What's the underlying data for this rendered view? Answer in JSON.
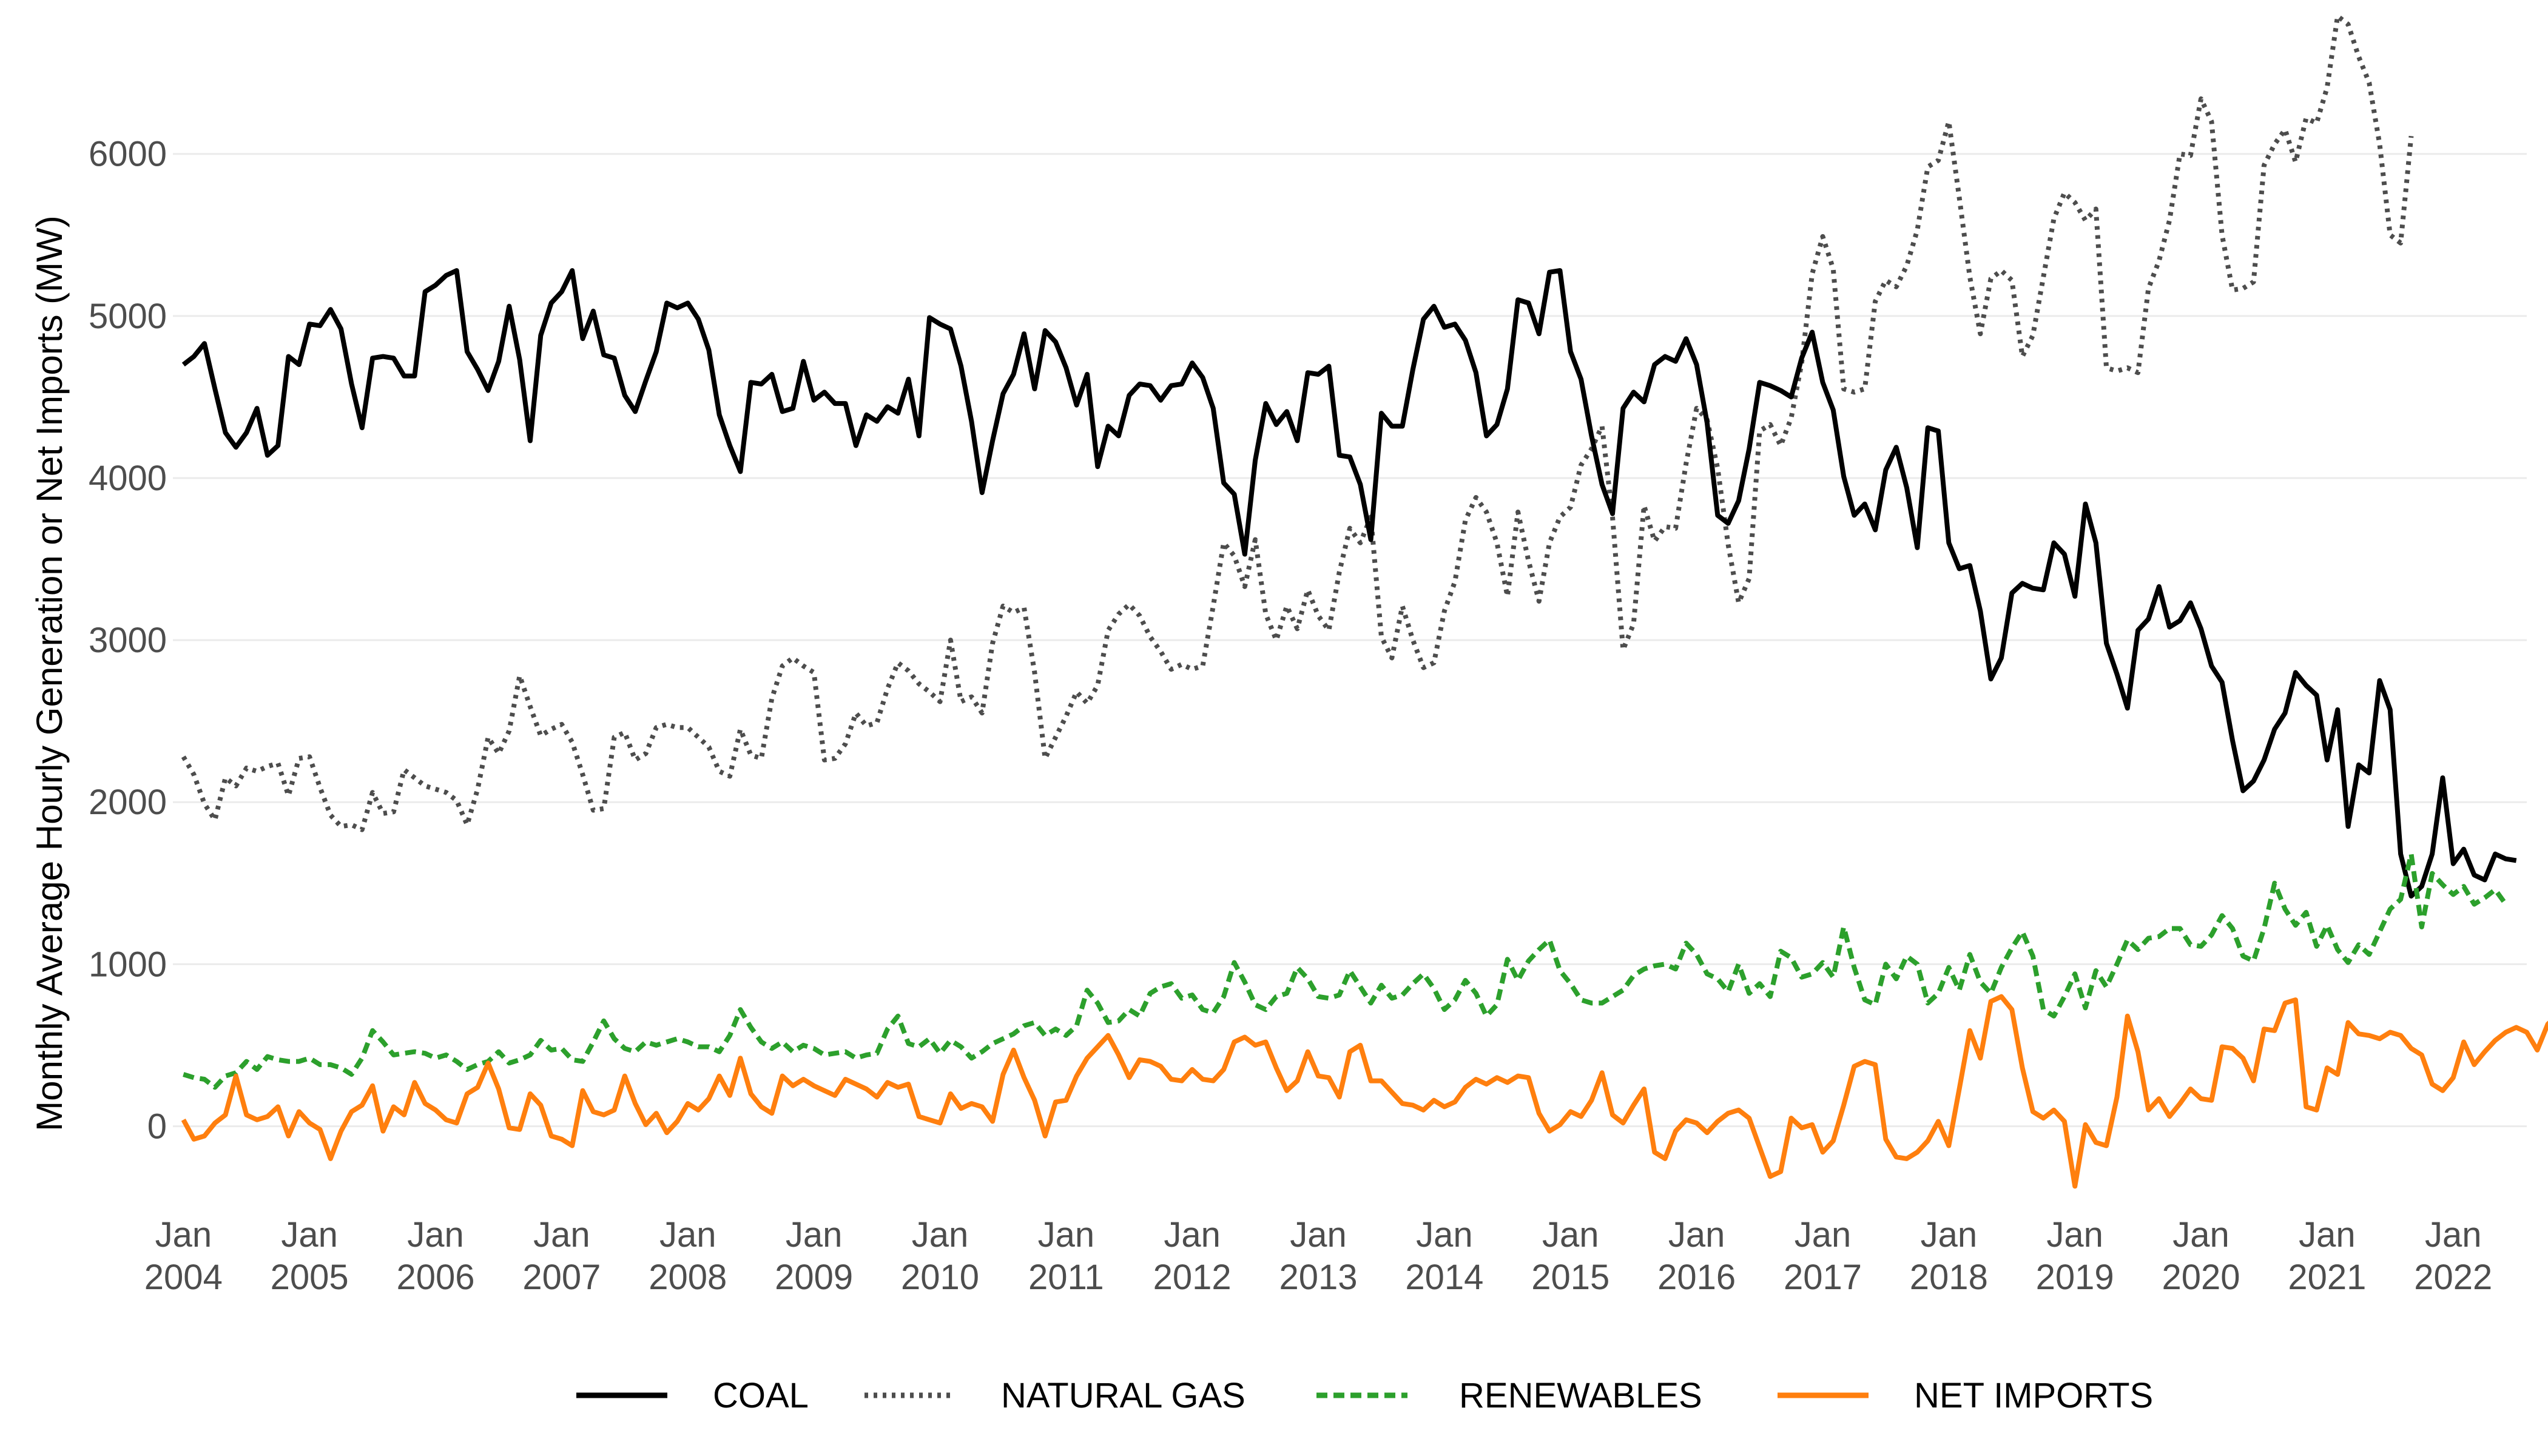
{
  "chart_data": {
    "type": "line",
    "title": "",
    "xlabel": "",
    "ylabel": "Monthly Average Hourly Generation or Net Imports (MW)",
    "x_start": "2004-01",
    "x_end": "2022-07",
    "xlim": [
      "2003-12",
      "2022-08"
    ],
    "ylim": [
      -500,
      6800
    ],
    "y_ticks": [
      0,
      1000,
      2000,
      3000,
      4000,
      5000,
      6000
    ],
    "y_tick_labels": [
      "0",
      "1000",
      "2000",
      "3000",
      "4000",
      "5000",
      "6000"
    ],
    "x_ticks": [
      {
        "date": "2004-01",
        "month": "Jan",
        "year": "2004"
      },
      {
        "date": "2005-01",
        "month": "Jan",
        "year": "2005"
      },
      {
        "date": "2006-01",
        "month": "Jan",
        "year": "2006"
      },
      {
        "date": "2007-01",
        "month": "Jan",
        "year": "2007"
      },
      {
        "date": "2008-01",
        "month": "Jan",
        "year": "2008"
      },
      {
        "date": "2009-01",
        "month": "Jan",
        "year": "2009"
      },
      {
        "date": "2010-01",
        "month": "Jan",
        "year": "2010"
      },
      {
        "date": "2011-01",
        "month": "Jan",
        "year": "2011"
      },
      {
        "date": "2012-01",
        "month": "Jan",
        "year": "2012"
      },
      {
        "date": "2013-01",
        "month": "Jan",
        "year": "2013"
      },
      {
        "date": "2014-01",
        "month": "Jan",
        "year": "2014"
      },
      {
        "date": "2015-01",
        "month": "Jan",
        "year": "2015"
      },
      {
        "date": "2016-01",
        "month": "Jan",
        "year": "2016"
      },
      {
        "date": "2017-01",
        "month": "Jan",
        "year": "2017"
      },
      {
        "date": "2018-01",
        "month": "Jan",
        "year": "2018"
      },
      {
        "date": "2019-01",
        "month": "Jan",
        "year": "2019"
      },
      {
        "date": "2020-01",
        "month": "Jan",
        "year": "2020"
      },
      {
        "date": "2021-01",
        "month": "Jan",
        "year": "2021"
      },
      {
        "date": "2022-01",
        "month": "Jan",
        "year": "2022"
      }
    ],
    "grid": "horizontal-major",
    "legend_position": "bottom",
    "series": [
      {
        "name": "COAL",
        "color": "#000000",
        "dash": "solid",
        "values": [
          4700,
          4750,
          4830,
          4550,
          4280,
          4190,
          4280,
          4430,
          4140,
          4200,
          4750,
          4700,
          4950,
          4940,
          5040,
          4920,
          4580,
          4310,
          4740,
          4750,
          4740,
          4630,
          4630,
          5150,
          5190,
          5250,
          5280,
          4780,
          4670,
          4540,
          4720,
          5060,
          4730,
          4230,
          4880,
          5080,
          5150,
          5280,
          4860,
          5030,
          4760,
          4740,
          4510,
          4410,
          4600,
          4780,
          5080,
          5050,
          5080,
          4980,
          4790,
          4390,
          4200,
          4040,
          4590,
          4580,
          4640,
          4410,
          4430,
          4720,
          4480,
          4530,
          4460,
          4460,
          4200,
          4390,
          4350,
          4440,
          4400,
          4610,
          4260,
          4990,
          4950,
          4920,
          4690,
          4350,
          3910,
          4230,
          4520,
          4640,
          4890,
          4550,
          4910,
          4840,
          4680,
          4450,
          4640,
          4070,
          4320,
          4260,
          4510,
          4580,
          4570,
          4480,
          4570,
          4580,
          4710,
          4620,
          4430,
          3970,
          3900,
          3530,
          4110,
          4460,
          4330,
          4410,
          4230,
          4650,
          4640,
          4690,
          4140,
          4130,
          3960,
          3620,
          4400,
          4320,
          4320,
          4670,
          4980,
          5060,
          4930,
          4950,
          4850,
          4650,
          4260,
          4330,
          4550,
          5100,
          5080,
          4890,
          5270,
          5280,
          4780,
          4610,
          4260,
          3960,
          3780,
          4430,
          4530,
          4470,
          4700,
          4750,
          4720,
          4860,
          4700,
          4340,
          3770,
          3720,
          3860,
          4180,
          4590,
          4570,
          4540,
          4500,
          4740,
          4900,
          4590,
          4420,
          4010,
          3770,
          3840,
          3680,
          4050,
          4190,
          3940,
          3570,
          4310,
          4290,
          3600,
          3440,
          3460,
          3180,
          2760,
          2890,
          3290,
          3350,
          3320,
          3310,
          3600,
          3530,
          3270,
          3840,
          3600,
          2980,
          2790,
          2580,
          3060,
          3130,
          3330,
          3080,
          3120,
          3230,
          3070,
          2840,
          2740,
          2380,
          2070,
          2130,
          2260,
          2450,
          2550,
          2800,
          2720,
          2660,
          2260,
          2570,
          1850,
          2230,
          2180,
          2750,
          2570,
          1680,
          1420,
          1480,
          1680,
          2150,
          1620,
          1710,
          1550,
          1520,
          1680,
          1650,
          1640
        ]
      },
      {
        "name": "NATURAL GAS",
        "color": "#4d4d4d",
        "dash": "dotted",
        "values": [
          2280,
          2170,
          1990,
          1890,
          2150,
          2100,
          2210,
          2190,
          2220,
          2240,
          2040,
          2270,
          2280,
          2090,
          1920,
          1850,
          1860,
          1830,
          2060,
          1930,
          1940,
          2200,
          2150,
          2100,
          2080,
          2060,
          2010,
          1860,
          2080,
          2400,
          2300,
          2440,
          2780,
          2590,
          2410,
          2450,
          2480,
          2370,
          2170,
          1950,
          1960,
          2400,
          2430,
          2260,
          2300,
          2460,
          2480,
          2460,
          2460,
          2400,
          2340,
          2190,
          2160,
          2450,
          2290,
          2270,
          2640,
          2840,
          2890,
          2840,
          2800,
          2260,
          2270,
          2360,
          2550,
          2470,
          2490,
          2700,
          2860,
          2810,
          2730,
          2680,
          2620,
          3000,
          2620,
          2650,
          2550,
          2980,
          3210,
          3170,
          3200,
          2800,
          2270,
          2400,
          2530,
          2680,
          2610,
          2720,
          3060,
          3160,
          3220,
          3150,
          3020,
          2930,
          2820,
          2850,
          2820,
          2840,
          3210,
          3600,
          3520,
          3330,
          3620,
          3160,
          3000,
          3210,
          3070,
          3310,
          3150,
          3060,
          3420,
          3690,
          3600,
          3760,
          3020,
          2890,
          3210,
          3000,
          2830,
          2860,
          3180,
          3360,
          3740,
          3880,
          3790,
          3600,
          3270,
          3790,
          3490,
          3240,
          3600,
          3760,
          3820,
          4080,
          4180,
          4320,
          3760,
          2940,
          3100,
          3830,
          3610,
          3700,
          3690,
          4090,
          4430,
          4360,
          4060,
          3590,
          3230,
          3380,
          4290,
          4330,
          4200,
          4370,
          4710,
          5260,
          5490,
          5290,
          4550,
          4530,
          4550,
          5090,
          5220,
          5180,
          5310,
          5530,
          5920,
          5960,
          6200,
          5730,
          5240,
          4890,
          5230,
          5280,
          5220,
          4750,
          4880,
          5240,
          5600,
          5760,
          5700,
          5590,
          5660,
          4680,
          4660,
          4680,
          4650,
          5170,
          5340,
          5590,
          6000,
          5990,
          6340,
          6200,
          5500,
          5160,
          5170,
          5210,
          5930,
          6060,
          6150,
          5950,
          6220,
          6190,
          6410,
          6850,
          6800,
          6600,
          6440,
          6060,
          5500,
          5450,
          6110
        ]
      },
      {
        "name": "RENEWABLES",
        "color": "#2ca02c",
        "dash": "dashed",
        "values": [
          320,
          300,
          290,
          240,
          310,
          330,
          400,
          350,
          430,
          410,
          400,
          400,
          420,
          380,
          380,
          360,
          320,
          420,
          590,
          520,
          440,
          450,
          460,
          450,
          420,
          440,
          400,
          350,
          380,
          400,
          460,
          390,
          410,
          440,
          530,
          470,
          480,
          410,
          400,
          520,
          650,
          540,
          480,
          460,
          520,
          500,
          520,
          540,
          520,
          490,
          490,
          460,
          560,
          720,
          610,
          520,
          480,
          520,
          460,
          500,
          480,
          440,
          450,
          460,
          420,
          440,
          450,
          600,
          680,
          510,
          490,
          540,
          450,
          530,
          490,
          420,
          460,
          510,
          540,
          570,
          620,
          640,
          560,
          600,
          560,
          620,
          840,
          760,
          640,
          650,
          720,
          680,
          820,
          860,
          880,
          790,
          810,
          720,
          700,
          800,
          1010,
          890,
          750,
          720,
          800,
          820,
          980,
          910,
          800,
          790,
          810,
          960,
          860,
          760,
          870,
          790,
          810,
          880,
          940,
          850,
          720,
          780,
          900,
          820,
          680,
          750,
          1030,
          900,
          1020,
          1090,
          1150,
          960,
          880,
          780,
          760,
          760,
          800,
          840,
          930,
          970,
          990,
          1000,
          970,
          1130,
          1060,
          940,
          910,
          830,
          1000,
          820,
          880,
          800,
          1080,
          1040,
          920,
          940,
          1010,
          920,
          1230,
          980,
          780,
          750,
          1000,
          910,
          1050,
          1000,
          760,
          820,
          980,
          840,
          1060,
          890,
          820,
          980,
          1100,
          1200,
          1050,
          720,
          680,
          800,
          940,
          730,
          960,
          860,
          1000,
          1150,
          1090,
          1160,
          1170,
          1220,
          1220,
          1120,
          1110,
          1180,
          1300,
          1220,
          1050,
          1020,
          1220,
          1500,
          1340,
          1240,
          1320,
          1110,
          1240,
          1090,
          1010,
          1120,
          1060,
          1200,
          1340,
          1400,
          1680,
          1230,
          1560,
          1490,
          1430,
          1480,
          1370,
          1410,
          1460,
          1370
        ]
      },
      {
        "name": "NET IMPORTS",
        "color": "#ff7f0e",
        "dash": "solid",
        "values": [
          40,
          -80,
          -60,
          20,
          70,
          310,
          70,
          40,
          60,
          120,
          -60,
          90,
          20,
          -20,
          -200,
          -30,
          90,
          130,
          250,
          -30,
          120,
          70,
          270,
          140,
          100,
          40,
          20,
          200,
          240,
          390,
          230,
          -10,
          -20,
          200,
          130,
          -60,
          -80,
          -120,
          220,
          90,
          70,
          100,
          310,
          140,
          10,
          80,
          -40,
          30,
          140,
          100,
          170,
          310,
          190,
          420,
          200,
          120,
          80,
          310,
          250,
          290,
          250,
          220,
          190,
          290,
          260,
          230,
          180,
          270,
          240,
          260,
          60,
          40,
          20,
          200,
          110,
          140,
          120,
          30,
          320,
          470,
          300,
          160,
          -60,
          150,
          160,
          310,
          420,
          490,
          560,
          440,
          300,
          410,
          400,
          370,
          290,
          280,
          350,
          290,
          280,
          350,
          520,
          550,
          500,
          520,
          360,
          220,
          280,
          460,
          310,
          300,
          180,
          460,
          500,
          280,
          280,
          210,
          140,
          130,
          100,
          160,
          120,
          150,
          240,
          290,
          260,
          300,
          270,
          310,
          300,
          80,
          -30,
          10,
          90,
          60,
          160,
          330,
          70,
          20,
          130,
          230,
          -160,
          -200,
          -30,
          40,
          20,
          -40,
          30,
          80,
          100,
          50,
          -130,
          -310,
          -280,
          50,
          -10,
          10,
          -160,
          -90,
          130,
          370,
          400,
          380,
          -80,
          -190,
          -200,
          -160,
          -90,
          30,
          -120,
          230,
          590,
          420,
          770,
          800,
          720,
          360,
          90,
          50,
          100,
          30,
          -370,
          10,
          -100,
          -120,
          180,
          680,
          460,
          100,
          170,
          60,
          140,
          230,
          170,
          160,
          490,
          480,
          420,
          280,
          600,
          590,
          760,
          780,
          120,
          100,
          360,
          320,
          640,
          570,
          560,
          540,
          580,
          560,
          480,
          440,
          260,
          220,
          300,
          520,
          380,
          460,
          530,
          580,
          610,
          580,
          470,
          630,
          690
        ]
      }
    ]
  }
}
